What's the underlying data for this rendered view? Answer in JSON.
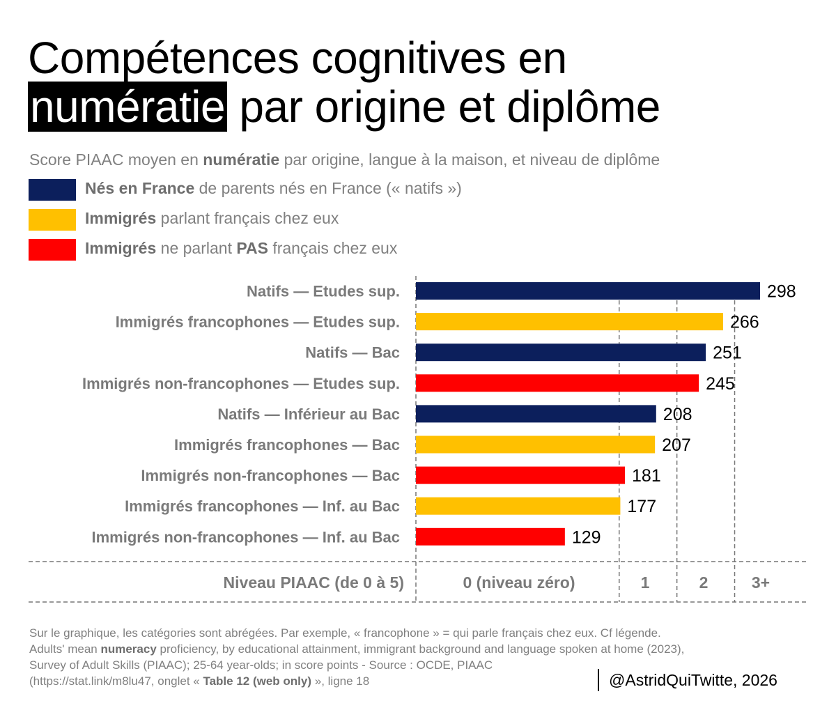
{
  "title": {
    "line1": "Compétences cognitives en",
    "highlight": "numératie",
    "line2_rest": " par origine et diplôme"
  },
  "subtitle": {
    "before": "Score PIAAC moyen en ",
    "bold": "numératie",
    "after": " par origine, langue à la maison, et niveau de diplôme"
  },
  "legend": [
    {
      "color": "#0c1f5c",
      "bold": "Nés en France",
      "text": " de parents nés en France (« natifs »)"
    },
    {
      "color": "#ffc000",
      "bold": "Immigrés",
      "text": " parlant français chez eux"
    },
    {
      "color": "#ff0000",
      "bold": "Immigrés",
      "text": " ne parlant ",
      "bold2": "PAS",
      "text2": " français chez eux"
    }
  ],
  "chart_data": {
    "type": "bar",
    "orientation": "horizontal",
    "categories": [
      "Natifs — Etudes sup.",
      "Immigrés francophones — Etudes sup.",
      "Natifs — Bac",
      "Immigrés non-francophones — Etudes sup.",
      "Natifs — Inférieur au Bac",
      "Immigrés francophones — Bac",
      "Immigrés non-francophones — Bac",
      "Immigrés francophones — Inf. au Bac",
      "Immigrés non-francophones — Inf. au Bac"
    ],
    "values": [
      298,
      266,
      251,
      245,
      208,
      207,
      181,
      177,
      129
    ],
    "groups": [
      "natifs",
      "francophones",
      "natifs",
      "non-francophones",
      "natifs",
      "francophones",
      "non-francophones",
      "francophones",
      "non-francophones"
    ],
    "colors": {
      "natifs": "#0c1f5c",
      "francophones": "#ffc000",
      "non-francophones": "#ff0000"
    },
    "xlim": [
      0,
      300
    ],
    "level_thresholds": [
      176,
      226,
      276
    ],
    "level_row_label": "Niveau PIAAC (de 0 à 5)",
    "levels": [
      {
        "label": "0 (niveau zéro)",
        "from": 0,
        "to": 176
      },
      {
        "label": "1",
        "from": 176,
        "to": 226
      },
      {
        "label": "2",
        "from": 226,
        "to": 276
      },
      {
        "label": "3+",
        "from": 276,
        "to": 340
      }
    ]
  },
  "footnote": {
    "line1": "Sur le graphique, les catégories sont abrégées. Par exemple, « francophone » = qui parle français chez eux. Cf légende.",
    "line2_before": "Adults' mean ",
    "line2_bold": "numeracy",
    "line2_after": " proficiency, by educational attainment, immigrant background and language spoken at home (2023),",
    "line3": "Survey of Adult Skills (PIAAC); 25-64 year-olds; in score points - Source : OCDE, PIAAC",
    "line4_before": "(https://stat.link/m8lu47, onglet « ",
    "line4_bold": "Table 12 (web only)",
    "line4_after": " », ligne 18"
  },
  "signature": "@AstridQuiTwitte, 2026"
}
